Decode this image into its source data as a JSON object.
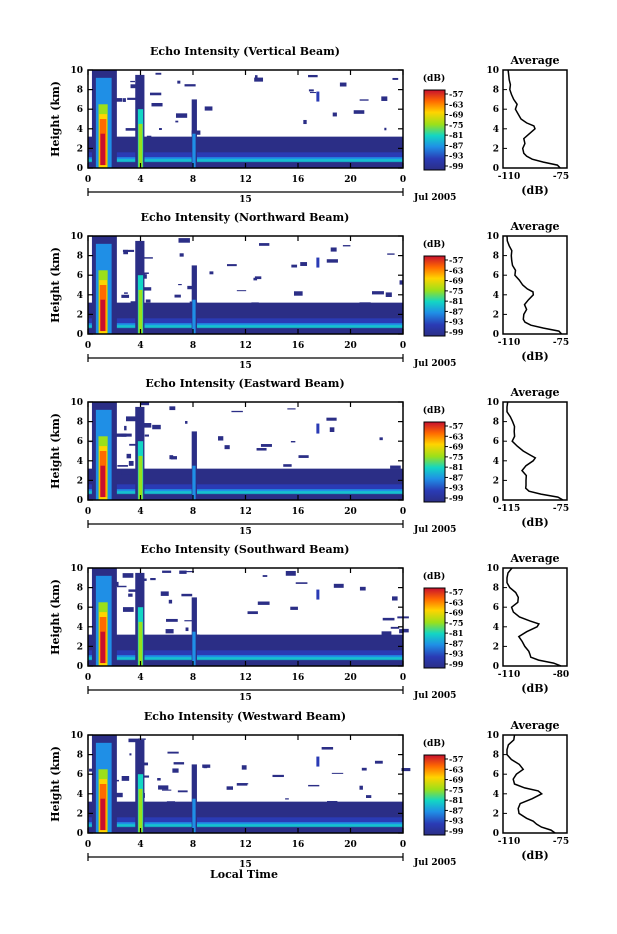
{
  "xlabel": "Local Time",
  "date_label": "Jul 2005",
  "day_label": "15",
  "panels": [
    {
      "title": "Echo Intensity (Vertical Beam)",
      "avg_xticks": [
        "-110",
        "-75"
      ]
    },
    {
      "title": "Echo Intensity (Northward Beam)",
      "avg_xticks": [
        "-110",
        "-75"
      ]
    },
    {
      "title": "Echo Intensity (Eastward Beam)",
      "avg_xticks": [
        "-115",
        "-75"
      ]
    },
    {
      "title": "Echo Intensity (Southward Beam)",
      "avg_xticks": [
        "-110",
        "-80"
      ]
    },
    {
      "title": "Echo Intensity (Westward Beam)",
      "avg_xticks": [
        "-110",
        "-75"
      ]
    }
  ],
  "chart_data": {
    "type": "heatmap",
    "ylabel": "Height (km)",
    "xticks": [
      "0",
      "4",
      "8",
      "12",
      "16",
      "20",
      "0"
    ],
    "yticks": [
      "0",
      "2",
      "4",
      "6",
      "8",
      "10"
    ],
    "xlim": [
      0,
      24
    ],
    "ylim": [
      0,
      10
    ],
    "colorbar": {
      "label": "(dB)",
      "ticks": [
        "-57",
        "-63",
        "-69",
        "-75",
        "-81",
        "-87",
        "-93",
        "-99"
      ],
      "colors": [
        "#c8102e",
        "#ff6a00",
        "#ffd400",
        "#9be01a",
        "#13d6c4",
        "#1f8fe6",
        "#2a3bb5",
        "#2b2e86"
      ]
    },
    "average": {
      "title": "Average",
      "xlabel": "(dB)",
      "yticks": [
        "0",
        "2",
        "4",
        "6",
        "8",
        "10"
      ],
      "profile_height_km": [
        0,
        0.3,
        0.6,
        0.9,
        1.2,
        1.5,
        2.0,
        2.5,
        3.0,
        3.5,
        4.0,
        4.3,
        4.6,
        5.0,
        5.5,
        6.0,
        6.5,
        7.0,
        7.5,
        8.0,
        8.5,
        9.0,
        9.5,
        10.0
      ],
      "profile_fraction": [
        0.95,
        0.9,
        0.65,
        0.45,
        0.35,
        0.3,
        0.28,
        0.32,
        0.3,
        0.4,
        0.5,
        0.48,
        0.35,
        0.25,
        0.2,
        0.15,
        0.18,
        0.12,
        0.08,
        0.05,
        0.06,
        0.04,
        0.03,
        0.02
      ]
    }
  }
}
